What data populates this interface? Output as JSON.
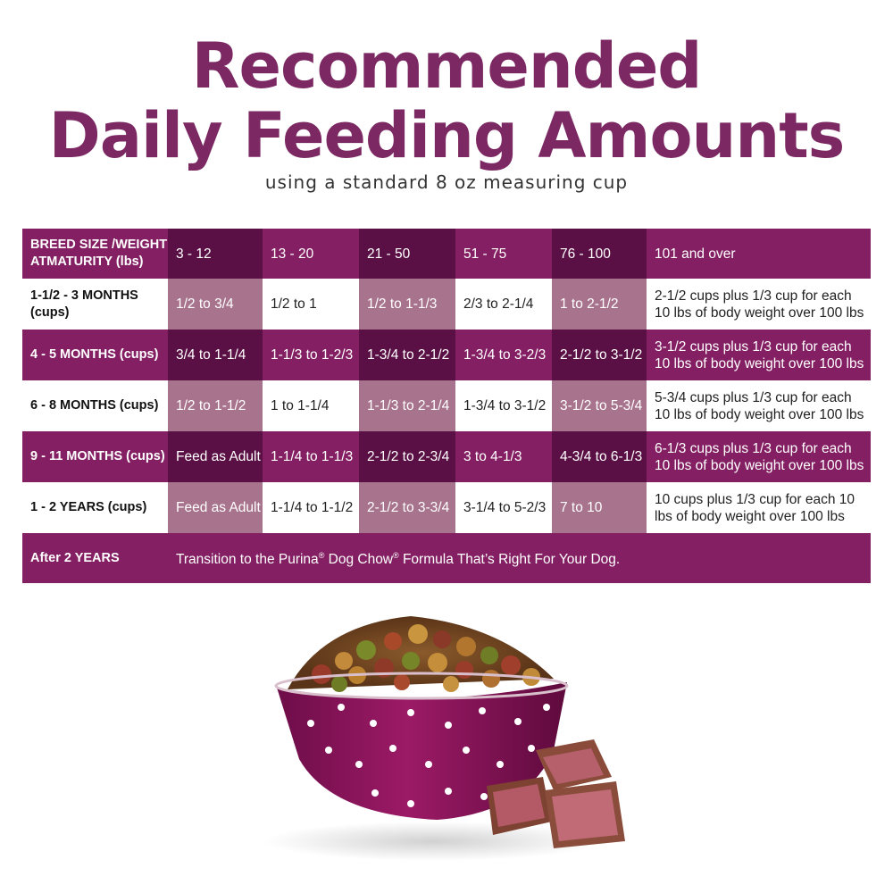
{
  "title_line1": "Recommended",
  "title_line2": "Daily Feeding Amounts",
  "subtitle": "using a standard 8 oz measuring cup",
  "table": {
    "header_label": "BREED SIZE /WEIGHT ATMATURITY (lbs)",
    "columns": [
      "3 - 12",
      "13 - 20",
      "21 - 50",
      "51 - 75",
      "76 - 100",
      "101 and over"
    ],
    "rows": [
      {
        "label": "1-1/2 - 3 MONTHS (cups)",
        "cells": [
          "1/2 to 3/4",
          "1/2 to 1",
          "1/2 to 1-1/3",
          "2/3 to 2-1/4",
          "1 to 2-1/2",
          "2-1/2 cups plus 1/3 cup for each 10 lbs of body weight over 100 lbs"
        ]
      },
      {
        "label": "4 - 5 MONTHS (cups)",
        "cells": [
          "3/4 to 1-1/4",
          "1-1/3 to 1-2/3",
          "1-3/4 to 2-1/2",
          "1-3/4 to 3-2/3",
          "2-1/2 to 3-1/2",
          "3-1/2 cups plus 1/3 cup for each 10 lbs of body weight over 100 lbs"
        ]
      },
      {
        "label": "6 - 8 MONTHS (cups)",
        "cells": [
          "1/2 to 1-1/2",
          "1 to 1-1/4",
          "1-1/3 to 2-1/4",
          "1-3/4 to 3-1/2",
          "3-1/2 to 5-3/4",
          "5-3/4 cups plus 1/3 cup for each 10 lbs of body weight over 100 lbs"
        ]
      },
      {
        "label": "9 - 11 MONTHS (cups)",
        "cells": [
          "Feed as Adult",
          "1-1/4 to 1-1/3",
          "2-1/2 to 2-3/4",
          "3 to 4-1/3",
          "4-3/4 to 6-1/3",
          "6-1/3 cups plus 1/3 cup for each 10 lbs of body weight over 100 lbs"
        ]
      },
      {
        "label": "1 - 2 YEARS (cups)",
        "cells": [
          "Feed as Adult",
          "1-1/4 to 1-1/2",
          "2-1/2 to 3-3/4",
          "3-1/4 to 5-2/3",
          "7 to 10",
          "10 cups plus 1/3 cup for each 10 lbs of body weight over 100 lbs"
        ]
      }
    ],
    "after_label": "After 2 YEARS",
    "after_text_a": "Transition to the Purina",
    "after_reg": "®",
    "after_text_b": " Dog Chow",
    "after_text_c": " Formula That’s Right For Your Dog."
  },
  "colors": {
    "brand_purple": "#7b2863",
    "row_dark": "#831f62",
    "cell_shade": "#a8738c",
    "header_dark": "#5b1045"
  }
}
